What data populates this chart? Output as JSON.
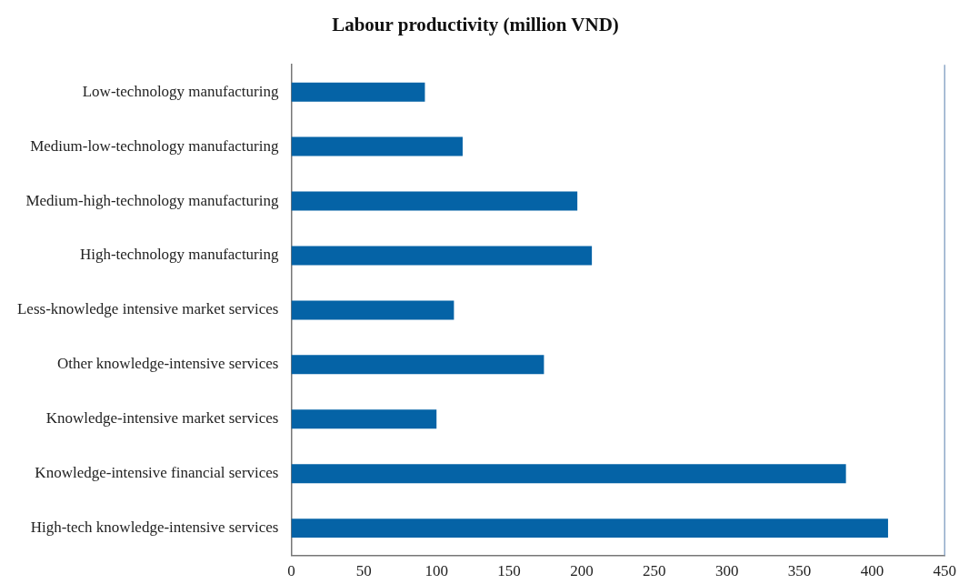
{
  "chart_data": {
    "type": "bar",
    "orientation": "horizontal",
    "title": "Labour productivity (million VND)",
    "categories": [
      "Low-technology manufacturing",
      "Medium-low-technology manufacturing",
      "Medium-high-technology manufacturing",
      "High-technology manufacturing",
      "Less-knowledge intensive market services",
      "Other knowledge-intensive services",
      "Knowledge-intensive market services",
      "Knowledge-intensive financial services",
      "High-tech knowledge-intensive services"
    ],
    "values": [
      92,
      118,
      197,
      207,
      112,
      174,
      100,
      382,
      411
    ],
    "color": "#0563a6",
    "xlim": [
      0,
      450
    ],
    "xticks": [
      0,
      50,
      100,
      150,
      200,
      250,
      300,
      350,
      400,
      450
    ],
    "grid": false,
    "legend": false
  }
}
